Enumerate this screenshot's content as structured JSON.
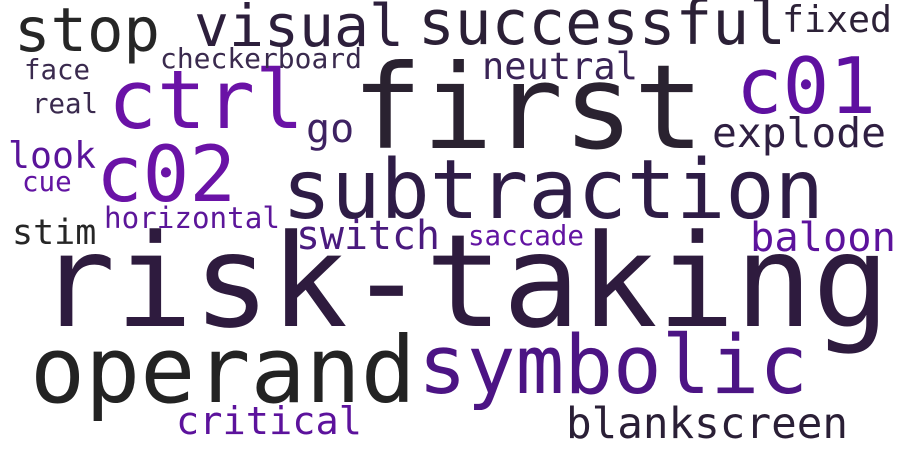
{
  "words": [
    {
      "key": "risk_taking",
      "text": "risk-taking",
      "color": "#2e1b3e"
    },
    {
      "key": "first",
      "text": "first",
      "color": "#2a2230"
    },
    {
      "key": "operand",
      "text": "operand",
      "color": "#232323"
    },
    {
      "key": "symbolic",
      "text": "symbolic",
      "color": "#4c1484"
    },
    {
      "key": "subtraction",
      "text": "subtraction",
      "color": "#2e1c46"
    },
    {
      "key": "successful",
      "text": "successful",
      "color": "#2b2036"
    },
    {
      "key": "ctrl",
      "text": "ctrl",
      "color": "#6a12a6"
    },
    {
      "key": "stop",
      "text": "stop",
      "color": "#262626"
    },
    {
      "key": "visual",
      "text": "visual",
      "color": "#2d1f3c"
    },
    {
      "key": "c01",
      "text": "c01",
      "color": "#5e10a0"
    },
    {
      "key": "c02",
      "text": "c02",
      "color": "#6a12a6"
    },
    {
      "key": "explode",
      "text": "explode",
      "color": "#2f1f42"
    },
    {
      "key": "blankscreen",
      "text": "blankscreen",
      "color": "#2a1f36"
    },
    {
      "key": "switch",
      "text": "switch",
      "color": "#4a1a7e"
    },
    {
      "key": "baloon",
      "text": "baloon",
      "color": "#5c129c"
    },
    {
      "key": "critical",
      "text": "critical",
      "color": "#5c129c"
    },
    {
      "key": "neutral",
      "text": "neutral",
      "color": "#3a2456"
    },
    {
      "key": "go",
      "text": "go",
      "color": "#3e2262"
    },
    {
      "key": "look",
      "text": "look",
      "color": "#5a149a"
    },
    {
      "key": "stim",
      "text": "stim",
      "color": "#262626"
    },
    {
      "key": "horizontal",
      "text": "horizontal",
      "color": "#5c169a"
    },
    {
      "key": "checkerboard",
      "text": "checkerboard",
      "color": "#3a2a4e"
    },
    {
      "key": "fixed",
      "text": "fixed",
      "color": "#2d2238"
    },
    {
      "key": "face",
      "text": "face",
      "color": "#3a2a4e"
    },
    {
      "key": "real",
      "text": "real",
      "color": "#3a2a4e"
    },
    {
      "key": "cue",
      "text": "cue",
      "color": "#6214a2"
    },
    {
      "key": "saccade",
      "text": "saccade",
      "color": "#6214a2"
    }
  ]
}
